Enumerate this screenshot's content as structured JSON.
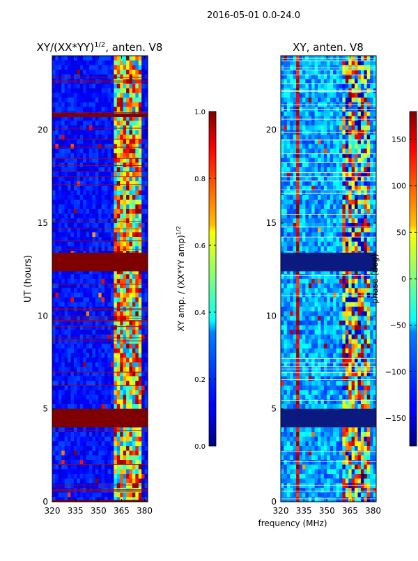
{
  "figure_title": "2016-05-01 0.0-24.0",
  "xlabel_shared": "frequency (MHz)",
  "chart_data": [
    {
      "type": "heatmap",
      "title": "XY/(XX*YY)",
      "title_exponent": "1/2",
      "title_suffix": ", anten. V8",
      "xlabel": "",
      "ylabel": "UT (hours)",
      "xlim": [
        320,
        382
      ],
      "ylim": [
        0,
        24
      ],
      "xticks": [
        320,
        335,
        350,
        365,
        380
      ],
      "yticks": [
        0,
        5,
        10,
        15,
        20
      ],
      "ytick_labels": [
        "0",
        "5",
        "10",
        "15",
        "20"
      ],
      "colorbar": {
        "label": "XY amp. / (XX*YY amp)",
        "label_exponent": "1/2",
        "range": [
          0.0,
          1.0
        ],
        "ticks": [
          0.0,
          0.2,
          0.4,
          0.6,
          0.8,
          1.0
        ],
        "tick_labels": [
          "0.0",
          "0.2",
          "0.4",
          "0.6",
          "0.8",
          "1.0"
        ]
      },
      "flagged_bands_hours": [
        [
          4.0,
          5.0
        ],
        [
          12.4,
          13.4
        ],
        [
          20.7,
          20.9
        ],
        [
          0.0,
          0.1
        ]
      ],
      "active_band_mhz": [
        360,
        378
      ]
    },
    {
      "type": "heatmap",
      "title": "XY, anten. V8",
      "xlabel": "frequency (MHz)",
      "ylabel": "",
      "xlim": [
        320,
        382
      ],
      "ylim": [
        0,
        24
      ],
      "xticks": [
        320,
        335,
        350,
        365,
        380
      ],
      "yticks": [
        0,
        5,
        10,
        15,
        20
      ],
      "ytick_labels": [
        "0",
        "5",
        "10",
        "15",
        "20"
      ],
      "colorbar": {
        "label": "phase (deg)",
        "range": [
          -180,
          180
        ],
        "ticks": [
          -150,
          -100,
          -50,
          0,
          50,
          100,
          150
        ],
        "tick_labels": [
          "−150",
          "−100",
          "−50",
          "0",
          "50",
          "100",
          "150"
        ]
      },
      "flagged_bands_hours": [
        [
          4.0,
          5.0
        ],
        [
          12.4,
          13.4
        ]
      ],
      "active_band_mhz": [
        360,
        378
      ],
      "hot_channel_mhz": 331
    }
  ]
}
